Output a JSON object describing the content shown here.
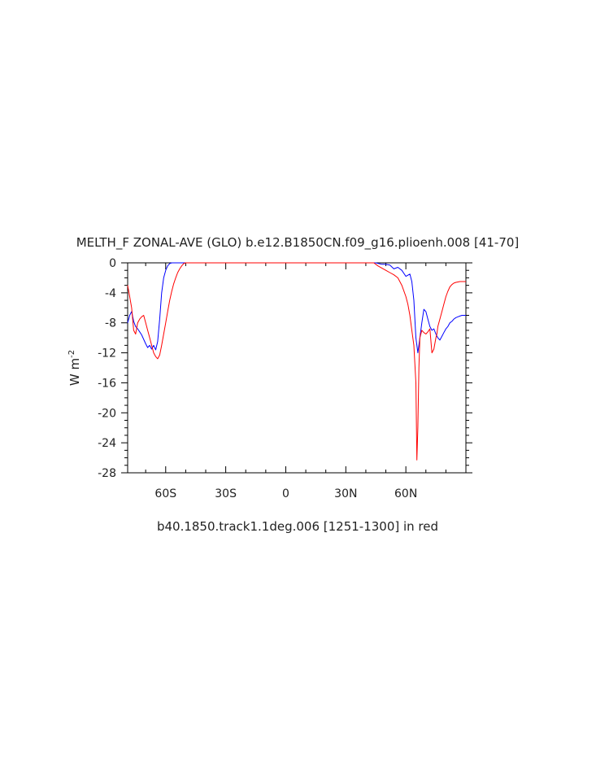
{
  "chart_data": {
    "type": "line",
    "title": "MELTH_F ZONAL-AVE (GLO) b.e12.B1850CN.f09_g16.plioenh.008 [41-70]",
    "subtitle": "b40.1850.track1.1deg.006 [1251-1300] in red",
    "ylabel": "W m",
    "ylabel_sup": "-2",
    "xlim": [
      -79,
      90
    ],
    "ylim": [
      -28,
      0
    ],
    "x_ticks": [
      -60,
      -30,
      0,
      30,
      60
    ],
    "x_tick_labels": [
      "60S",
      "30S",
      "0",
      "30N",
      "60N"
    ],
    "y_ticks": [
      0,
      -4,
      -8,
      -12,
      -16,
      -20,
      -24,
      -28
    ],
    "y_tick_labels": [
      "0",
      "-4",
      "-8",
      "-12",
      "-16",
      "-20",
      "-24",
      "-28"
    ],
    "grid": false,
    "series": [
      {
        "color": "#0000ff",
        "x": [
          -79,
          -78,
          -77,
          -76,
          -75,
          -74,
          -73,
          -72,
          -71,
          -70,
          -69,
          -68,
          -67,
          -66,
          -65,
          -64,
          -63,
          -62,
          -61,
          -60,
          -59,
          -58,
          -57,
          -56,
          -55,
          -50,
          0,
          45,
          48,
          50,
          52,
          54,
          56,
          58,
          60,
          62,
          63,
          64,
          65,
          66,
          67,
          68,
          69,
          70,
          71,
          72,
          73,
          74,
          75,
          76,
          77,
          78,
          79,
          80,
          81,
          82,
          83,
          84,
          85,
          86,
          87,
          88,
          89,
          90
        ],
        "y": [
          -8.0,
          -7.0,
          -6.5,
          -7.8,
          -8.5,
          -8.8,
          -9.2,
          -9.6,
          -10.2,
          -10.8,
          -11.3,
          -11.0,
          -11.5,
          -11.0,
          -11.6,
          -10.5,
          -7.5,
          -4.0,
          -2.0,
          -1.0,
          -0.4,
          -0.1,
          0,
          0,
          0,
          0,
          0,
          0,
          -0.2,
          -0.2,
          -0.3,
          -0.8,
          -0.6,
          -1.0,
          -1.8,
          -1.5,
          -2.5,
          -5.0,
          -10.0,
          -12.0,
          -10.0,
          -8.0,
          -6.2,
          -6.5,
          -7.5,
          -8.5,
          -9.0,
          -8.8,
          -9.5,
          -10.0,
          -10.3,
          -9.8,
          -9.3,
          -8.8,
          -8.5,
          -8.0,
          -7.8,
          -7.5,
          -7.3,
          -7.2,
          -7.1,
          -7.0,
          -7.0,
          -7.0
        ]
      },
      {
        "color": "#ff0000",
        "x": [
          -79,
          -78,
          -77,
          -76,
          -75,
          -74,
          -73,
          -72,
          -71,
          -70,
          -69,
          -68,
          -67,
          -66,
          -65,
          -64,
          -63,
          -62,
          -61,
          -60,
          -59,
          -58,
          -57,
          -56,
          -55,
          -54,
          -53,
          -52,
          -51,
          -50,
          -49,
          0,
          44,
          46,
          48,
          50,
          52,
          54,
          56,
          58,
          60,
          61,
          62,
          63,
          64,
          65,
          65.5,
          66,
          66.5,
          67,
          68,
          69,
          70,
          71,
          72,
          73,
          74,
          75,
          75.5,
          76,
          77,
          78,
          79,
          80,
          81,
          82,
          83,
          84,
          85,
          86,
          87,
          88,
          89,
          90
        ],
        "y": [
          -3.0,
          -4.5,
          -6.0,
          -9.0,
          -9.5,
          -8.0,
          -7.5,
          -7.2,
          -7.0,
          -8.0,
          -9.0,
          -10.0,
          -11.0,
          -12.0,
          -12.5,
          -12.8,
          -12.3,
          -11.0,
          -9.5,
          -8.0,
          -6.5,
          -5.0,
          -3.8,
          -2.8,
          -2.0,
          -1.3,
          -0.8,
          -0.4,
          -0.1,
          0,
          0,
          0,
          0,
          -0.4,
          -0.7,
          -1.0,
          -1.3,
          -1.6,
          -2.0,
          -3.0,
          -4.5,
          -5.5,
          -7.0,
          -9.0,
          -11.0,
          -16.0,
          -26.3,
          -22.0,
          -14.0,
          -10.0,
          -9.0,
          -9.3,
          -9.5,
          -9.2,
          -8.8,
          -12.0,
          -11.5,
          -10.0,
          -9.5,
          -8.5,
          -7.5,
          -6.5,
          -5.5,
          -4.5,
          -3.8,
          -3.2,
          -2.9,
          -2.7,
          -2.6,
          -2.55,
          -2.5,
          -2.5,
          -2.5,
          -2.5
        ]
      }
    ]
  }
}
